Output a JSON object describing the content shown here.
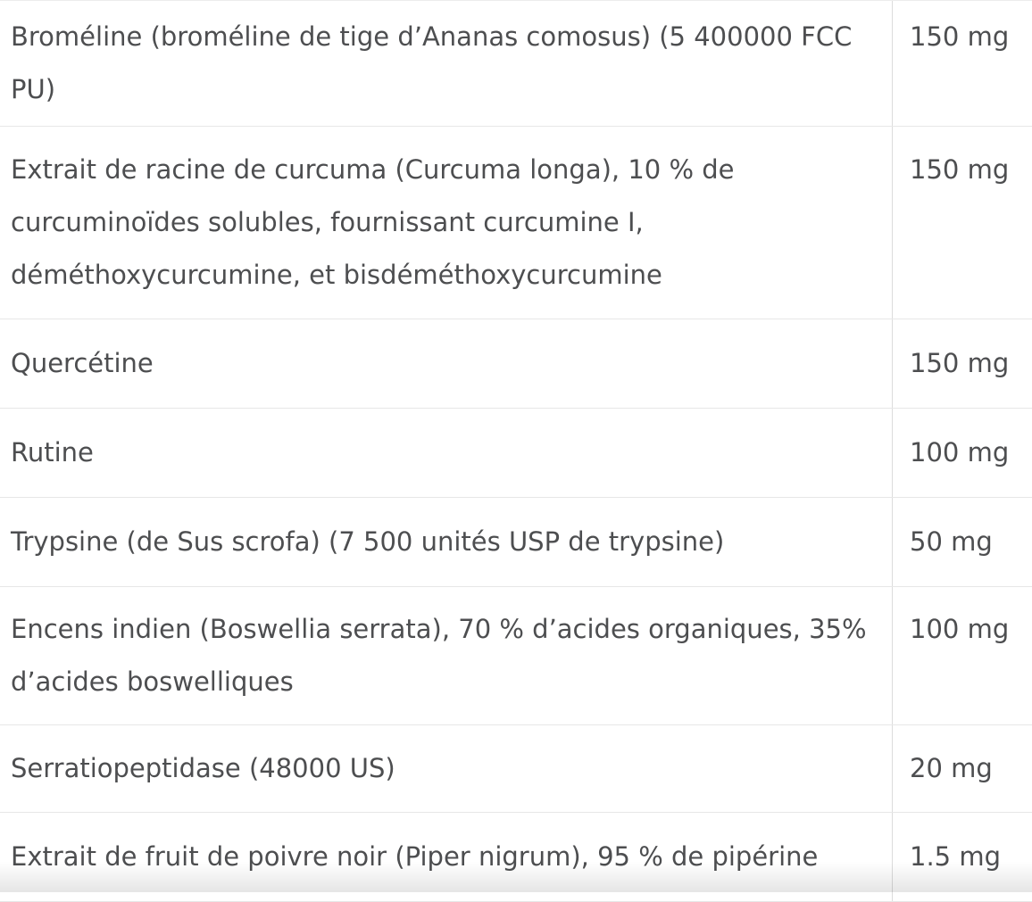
{
  "colors": {
    "text": "#4d4e50",
    "row_border": "#e7e7e7",
    "column_divider": "#dcdcdc",
    "background": "#ffffff"
  },
  "table": {
    "rows": [
      {
        "ingredient": "Broméline (broméline de tige d’Ananas comosus) (5 400000 FCC PU)",
        "ingredient_lines": [
          "Broméline (broméline de tige d’Ananas comosus) (5 400000 FCC",
          "PU)"
        ],
        "amount": "150 mg"
      },
      {
        "ingredient": "Extrait de racine de curcuma (Curcuma longa), 10 % de curcuminoïdes solubles, fournissant curcumine I, déméthoxycurcumine, et bisdéméthoxycurcumine",
        "ingredient_lines": [
          "Extrait de racine de curcuma (Curcuma longa), 10 % de",
          "curcuminoïdes solubles, fournissant curcumine I,",
          "déméthoxycurcumine, et bisdéméthoxycurcumine"
        ],
        "amount": "150 mg"
      },
      {
        "ingredient": "Quercétine",
        "ingredient_lines": [
          "Quercétine"
        ],
        "amount": "150 mg"
      },
      {
        "ingredient": "Rutine",
        "ingredient_lines": [
          "Rutine"
        ],
        "amount": "100 mg"
      },
      {
        "ingredient": "Trypsine (de Sus scrofa) (7 500 unités USP de trypsine)",
        "ingredient_lines": [
          "Trypsine (de Sus scrofa) (7 500 unités USP de trypsine)"
        ],
        "amount": "50 mg"
      },
      {
        "ingredient": "Encens indien (Boswellia serrata), 70 % d’acides organiques, 35% d’acides boswelliques",
        "ingredient_lines": [
          "Encens indien (Boswellia serrata), 70 % d’acides organiques, 35%",
          "d’acides boswelliques"
        ],
        "amount": "100 mg"
      },
      {
        "ingredient": "Serratiopeptidase (48000 US)",
        "ingredient_lines": [
          "Serratiopeptidase (48000 US)"
        ],
        "amount": "20 mg"
      },
      {
        "ingredient": "Extrait de fruit de poivre noir (Piper nigrum), 95 % de pipérine",
        "ingredient_lines": [
          "Extrait de fruit de poivre noir (Piper nigrum), 95 % de pipérine"
        ],
        "amount": "1.5 mg"
      }
    ]
  }
}
